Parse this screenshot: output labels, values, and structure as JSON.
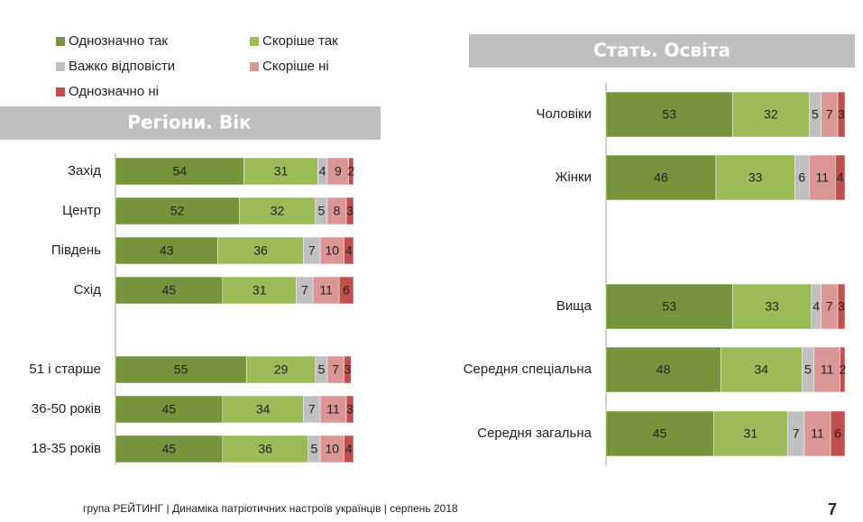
{
  "chart_data": [
    {
      "type": "bar",
      "title": "Регіони. Вік",
      "xlim": [
        0,
        100
      ],
      "categories": [
        "Захід",
        "Центр",
        "Південь",
        "Схід",
        null,
        "51 і старше",
        "36-50 років",
        "18-35 років"
      ],
      "series": [
        {
          "name": "Однозначно так",
          "color": "#77933c",
          "values": [
            54,
            52,
            43,
            45,
            null,
            55,
            45,
            45
          ]
        },
        {
          "name": "Скоріше так",
          "color": "#9bbb59",
          "values": [
            31,
            32,
            36,
            31,
            null,
            29,
            34,
            36
          ]
        },
        {
          "name": "Важко відповісти",
          "color": "#bfbfbf",
          "values": [
            4,
            5,
            7,
            7,
            null,
            5,
            7,
            5
          ]
        },
        {
          "name": "Скоріше ні",
          "color": "#d99694",
          "values": [
            9,
            8,
            10,
            11,
            null,
            7,
            11,
            10
          ]
        },
        {
          "name": "Однозначно ні",
          "color": "#c0504d",
          "values": [
            2,
            3,
            4,
            6,
            null,
            3,
            3,
            4
          ]
        }
      ]
    },
    {
      "type": "bar",
      "title": "Стать. Освіта",
      "xlim": [
        0,
        100
      ],
      "categories": [
        "Чоловіки",
        "Жінки",
        null,
        "Вища",
        "Середня спеціальна",
        "Середня загальна"
      ],
      "series": [
        {
          "color": "#77933c",
          "values": [
            53,
            46,
            null,
            53,
            48,
            45
          ]
        },
        {
          "color": "#9bbb59",
          "values": [
            32,
            33,
            null,
            33,
            34,
            31
          ]
        },
        {
          "color": "#bfbfbf",
          "values": [
            5,
            6,
            null,
            4,
            5,
            7
          ]
        },
        {
          "color": "#d99694",
          "values": [
            7,
            11,
            null,
            7,
            11,
            11
          ]
        },
        {
          "color": "#c0504d",
          "values": [
            3,
            4,
            null,
            3,
            2,
            6
          ]
        }
      ]
    }
  ],
  "footer": {
    "text": "група РЕЙТИНГ  | Динаміка патріотичних настроїв українців |  серпень 2018",
    "page": "7"
  }
}
